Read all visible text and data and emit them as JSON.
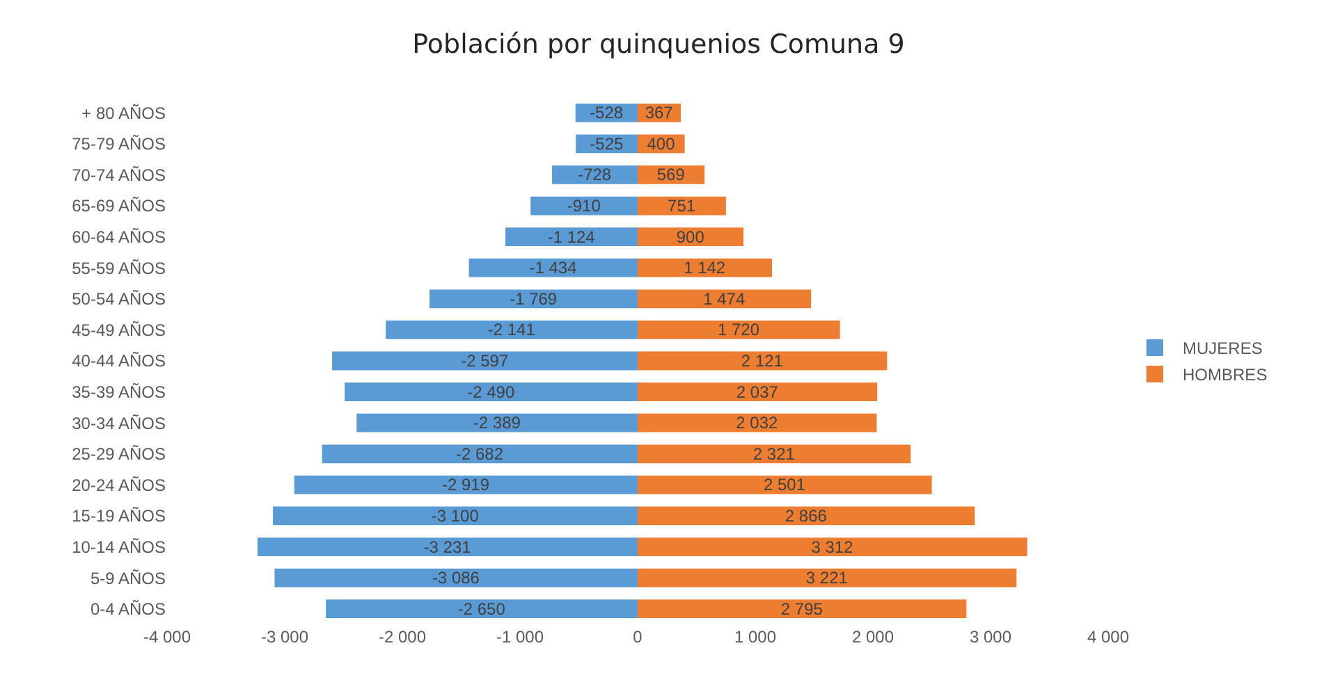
{
  "chart_data": {
    "type": "bar",
    "orientation": "horizontal",
    "stacked": true,
    "title": "Población por quinquenios Comuna 9",
    "categories": [
      "+ 80 AÑOS",
      "75-79 AÑOS",
      "70-74 AÑOS",
      "65-69 AÑOS",
      "60-64 AÑOS",
      "55-59 AÑOS",
      "50-54 AÑOS",
      "45-49 AÑOS",
      "40-44 AÑOS",
      "35-39 AÑOS",
      "30-34 AÑOS",
      "25-29 AÑOS",
      "20-24 AÑOS",
      "15-19 AÑOS",
      "10-14 AÑOS",
      "5-9 AÑOS",
      "0-4 AÑOS"
    ],
    "series": [
      {
        "name": "MUJERES",
        "color": "#5b9bd5",
        "values": [
          -528,
          -525,
          -728,
          -910,
          -1124,
          -1434,
          -1769,
          -2141,
          -2597,
          -2490,
          -2389,
          -2682,
          -2919,
          -3100,
          -3231,
          -3086,
          -2650
        ],
        "value_labels": [
          "-528",
          "-525",
          "-728",
          "-910",
          "-1 124",
          "-1 434",
          "-1 769",
          "-2 141",
          "-2 597",
          "-2 490",
          "-2 389",
          "-2 682",
          "-2 919",
          "-3 100",
          "-3 231",
          "-3 086",
          "-2 650"
        ]
      },
      {
        "name": "HOMBRES",
        "color": "#ed7d31",
        "values": [
          367,
          400,
          569,
          751,
          900,
          1142,
          1474,
          1720,
          2121,
          2037,
          2032,
          2321,
          2501,
          2866,
          3312,
          3221,
          2795
        ],
        "value_labels": [
          "367",
          "400",
          "569",
          "751",
          "900",
          "1 142",
          "1 474",
          "1 720",
          "2 121",
          "2 037",
          "2 032",
          "2 321",
          "2 501",
          "2 866",
          "3 312",
          "3 221",
          "2 795"
        ]
      }
    ],
    "xlim": [
      -4000,
      4000
    ],
    "xticks": [
      {
        "value": -4000,
        "label": "-4 000"
      },
      {
        "value": -3000,
        "label": "-3 000"
      },
      {
        "value": -2000,
        "label": "-2 000"
      },
      {
        "value": -1000,
        "label": "-1 000"
      },
      0,
      {
        "value": 1000,
        "label": "1 000"
      },
      {
        "value": 2000,
        "label": "2 000"
      },
      {
        "value": 3000,
        "label": "3 000"
      },
      {
        "value": 4000,
        "label": "4 000"
      }
    ],
    "legend": "right",
    "grid": false
  }
}
